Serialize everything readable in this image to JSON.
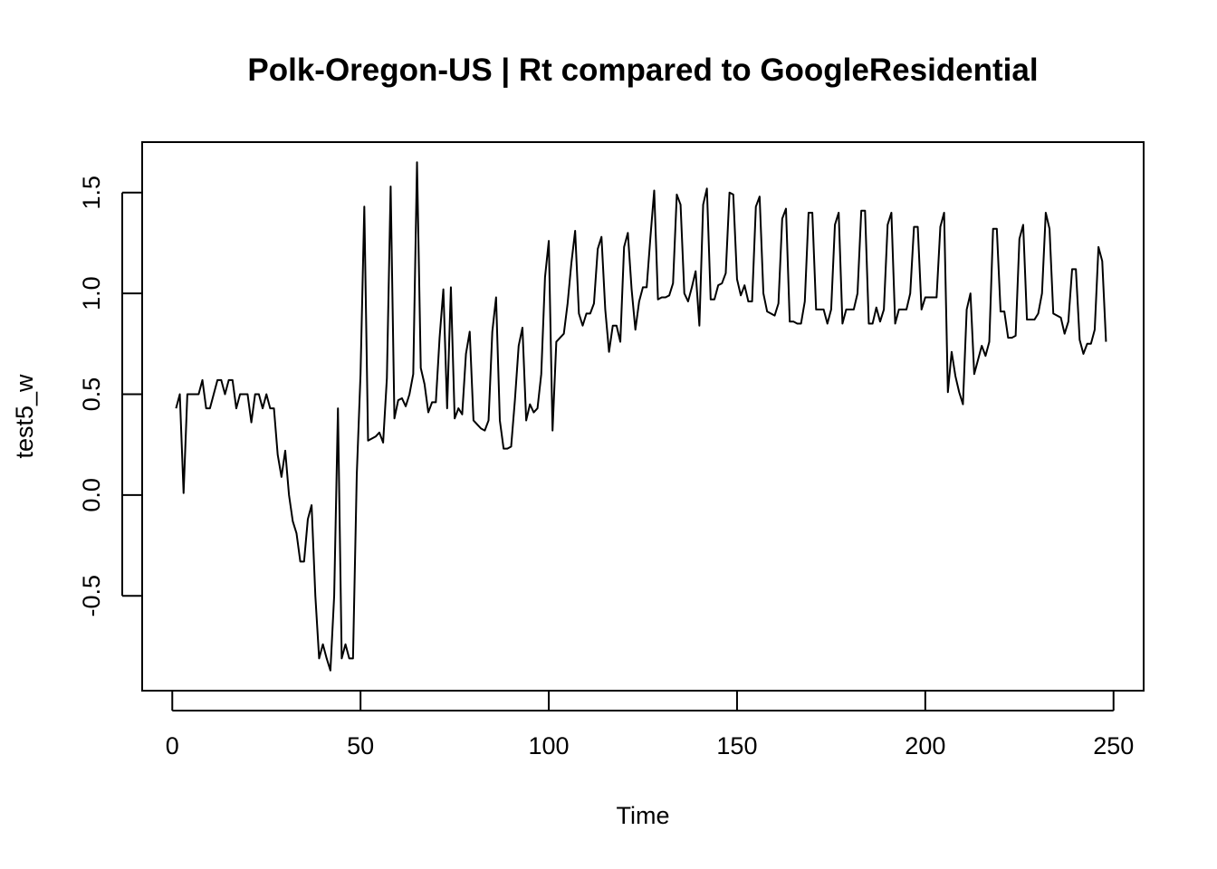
{
  "chart_data": {
    "type": "line",
    "title": "Polk-Oregon-US | Rt compared to GoogleResidential",
    "xlabel": "Time",
    "ylabel": "test5_w",
    "xlim": [
      -8,
      258
    ],
    "ylim": [
      -0.97,
      1.75
    ],
    "x_ticks": [
      0,
      50,
      100,
      150,
      200,
      250
    ],
    "y_ticks": [
      -0.5,
      0.0,
      0.5,
      1.0,
      1.5
    ],
    "x_tick_labels": [
      "0",
      "50",
      "100",
      "150",
      "200",
      "250"
    ],
    "y_tick_labels": [
      "-0.5",
      "0.0",
      "0.5",
      "1.0",
      "1.5"
    ],
    "grid": false,
    "line_color": "#000000",
    "series": [
      {
        "x_start": 1,
        "values": [
          0.43,
          0.5,
          0.01,
          0.5,
          0.5,
          0.5,
          0.5,
          0.57,
          0.43,
          0.43,
          0.5,
          0.57,
          0.57,
          0.5,
          0.57,
          0.57,
          0.43,
          0.5,
          0.5,
          0.5,
          0.36,
          0.5,
          0.5,
          0.43,
          0.5,
          0.43,
          0.43,
          0.2,
          0.09,
          0.22,
          0.0,
          -0.13,
          -0.19,
          -0.33,
          -0.33,
          -0.12,
          -0.05,
          -0.5,
          -0.81,
          -0.74,
          -0.81,
          -0.87,
          -0.5,
          0.43,
          -0.81,
          -0.74,
          -0.81,
          -0.81,
          0.1,
          0.6,
          1.43,
          0.27,
          0.28,
          0.29,
          0.31,
          0.26,
          0.58,
          1.53,
          0.38,
          0.47,
          0.48,
          0.44,
          0.5,
          0.6,
          1.65,
          0.63,
          0.55,
          0.41,
          0.46,
          0.46,
          0.78,
          1.02,
          0.43,
          1.03,
          0.38,
          0.43,
          0.4,
          0.7,
          0.81,
          0.37,
          0.35,
          0.33,
          0.32,
          0.37,
          0.81,
          0.98,
          0.37,
          0.23,
          0.23,
          0.24,
          0.47,
          0.74,
          0.83,
          0.37,
          0.45,
          0.41,
          0.43,
          0.6,
          1.08,
          1.26,
          0.32,
          0.76,
          0.78,
          0.8,
          0.95,
          1.15,
          1.31,
          0.9,
          0.84,
          0.9,
          0.9,
          0.95,
          1.22,
          1.28,
          0.92,
          0.71,
          0.84,
          0.84,
          0.76,
          1.23,
          1.3,
          1.02,
          0.82,
          0.96,
          1.03,
          1.03,
          1.28,
          1.51,
          0.97,
          0.98,
          0.98,
          0.99,
          1.05,
          1.49,
          1.44,
          1.0,
          0.96,
          1.03,
          1.11,
          0.84,
          1.44,
          1.52,
          0.97,
          0.97,
          1.04,
          1.05,
          1.1,
          1.5,
          1.49,
          1.07,
          0.99,
          1.04,
          0.96,
          0.96,
          1.43,
          1.48,
          1.0,
          0.91,
          0.9,
          0.89,
          0.95,
          1.37,
          1.42,
          0.86,
          0.86,
          0.85,
          0.85,
          0.96,
          1.4,
          1.4,
          0.92,
          0.92,
          0.92,
          0.85,
          0.92,
          1.34,
          1.4,
          0.85,
          0.92,
          0.92,
          0.92,
          1.0,
          1.41,
          1.41,
          0.85,
          0.85,
          0.93,
          0.86,
          0.92,
          1.34,
          1.4,
          0.85,
          0.92,
          0.92,
          0.92,
          1.0,
          1.33,
          1.33,
          0.92,
          0.98,
          0.98,
          0.98,
          0.98,
          1.33,
          1.4,
          0.51,
          0.71,
          0.59,
          0.51,
          0.45,
          0.92,
          1.0,
          0.6,
          0.67,
          0.74,
          0.69,
          0.76,
          1.32,
          1.32,
          0.91,
          0.91,
          0.78,
          0.78,
          0.79,
          1.27,
          1.34,
          0.87,
          0.87,
          0.87,
          0.9,
          1.0,
          1.4,
          1.32,
          0.9,
          0.89,
          0.88,
          0.8,
          0.86,
          1.12,
          1.12,
          0.77,
          0.7,
          0.75,
          0.75,
          0.82,
          1.23,
          1.16,
          0.76
        ]
      }
    ]
  }
}
